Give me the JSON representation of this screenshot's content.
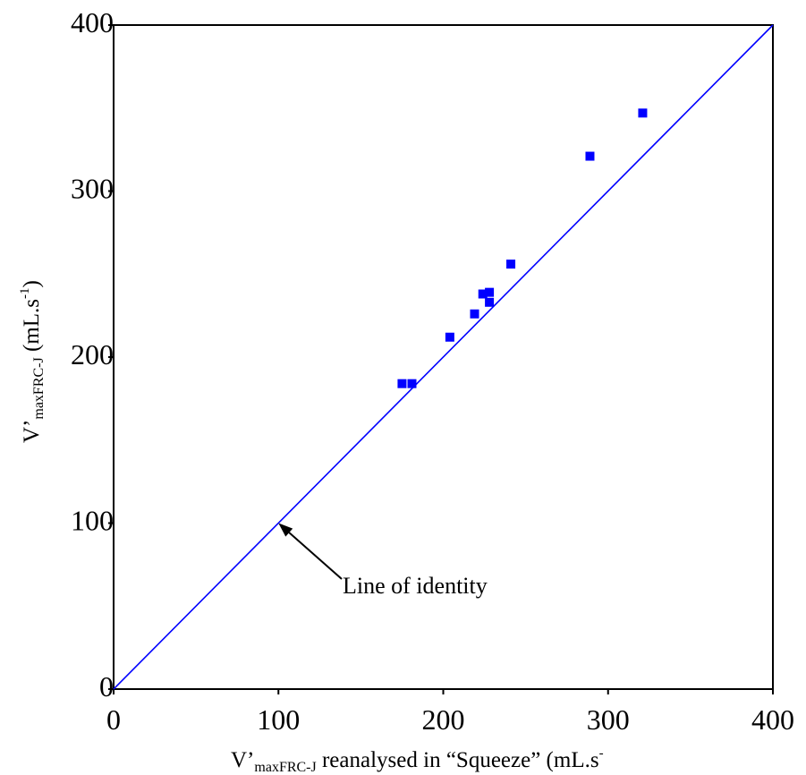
{
  "chart_data": {
    "type": "scatter",
    "title": "",
    "xlim": [
      0,
      400
    ],
    "ylim": [
      0,
      400
    ],
    "xticks": [
      "0",
      "100",
      "200",
      "300",
      "400"
    ],
    "yticks": [
      "0",
      "100",
      "200",
      "300",
      "400"
    ],
    "xlabel": {
      "prefix": "V’",
      "subscript": "maxFRC-J",
      "main": " reanalysed in “Squeeze” (mL.s",
      "superscript": "-"
    },
    "ylabel": {
      "prefix": "V’",
      "subscript": "maxFRC-J",
      "main": " (mL.s",
      "superscript": "-1",
      "suffix": ")"
    },
    "points": [
      {
        "x": 175,
        "y": 184
      },
      {
        "x": 181,
        "y": 184
      },
      {
        "x": 204,
        "y": 212
      },
      {
        "x": 219,
        "y": 226
      },
      {
        "x": 224,
        "y": 238
      },
      {
        "x": 228,
        "y": 239
      },
      {
        "x": 228,
        "y": 233
      },
      {
        "x": 241,
        "y": 256
      },
      {
        "x": 289,
        "y": 321
      },
      {
        "x": 321,
        "y": 347
      }
    ],
    "reference_line": {
      "from": [
        0,
        0
      ],
      "to": [
        400,
        400
      ]
    },
    "annotation": {
      "text": "Line of identity",
      "arrow_target": [
        100,
        100
      ]
    },
    "colors": {
      "points": "#0000ff",
      "line": "#0000ff",
      "frame": "#000000"
    },
    "grid": false,
    "legend": "none"
  }
}
